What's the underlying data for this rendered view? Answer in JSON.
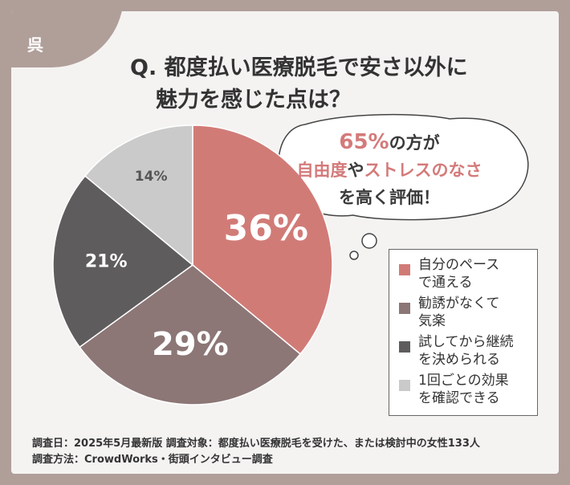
{
  "tag": "呉",
  "title": {
    "line1": "Q. 都度払い医療脱毛で安さ以外に",
    "line2": "魅力を感じた点は？"
  },
  "callout": {
    "percent": "65%",
    "text1": "の方が",
    "emph1": "自由度",
    "text2": "や",
    "emph2": "ストレスのなさ",
    "text3": "を高く評価！"
  },
  "chart_data": {
    "type": "pie",
    "slices": [
      {
        "label": "自分のペースで通える",
        "value": 36,
        "display": "36%",
        "color": "#d17b77"
      },
      {
        "label": "勧誘がなくて気楽",
        "value": 29,
        "display": "29%",
        "color": "#8c7676"
      },
      {
        "label": "試してから継続を決められる",
        "value": 21,
        "display": "21%",
        "color": "#5e5c5c"
      },
      {
        "label": "1回ごとの効果を確認できる",
        "value": 14,
        "display": "14%",
        "color": "#cacaca"
      }
    ],
    "legend": [
      "自分のペース\nで通える",
      "勧誘がなくて\n気楽",
      "試してから継続\nを決められる",
      "1回ごとの効果\nを確認できる"
    ],
    "legend_position": "right"
  },
  "notes": {
    "line1": "調査日：2025年5月最新版 調査対象：都度払い医療脱毛を受けた、または検討中の女性133人",
    "line2": "調査方法：CrowdWorks・街頭インタビュー調査"
  }
}
